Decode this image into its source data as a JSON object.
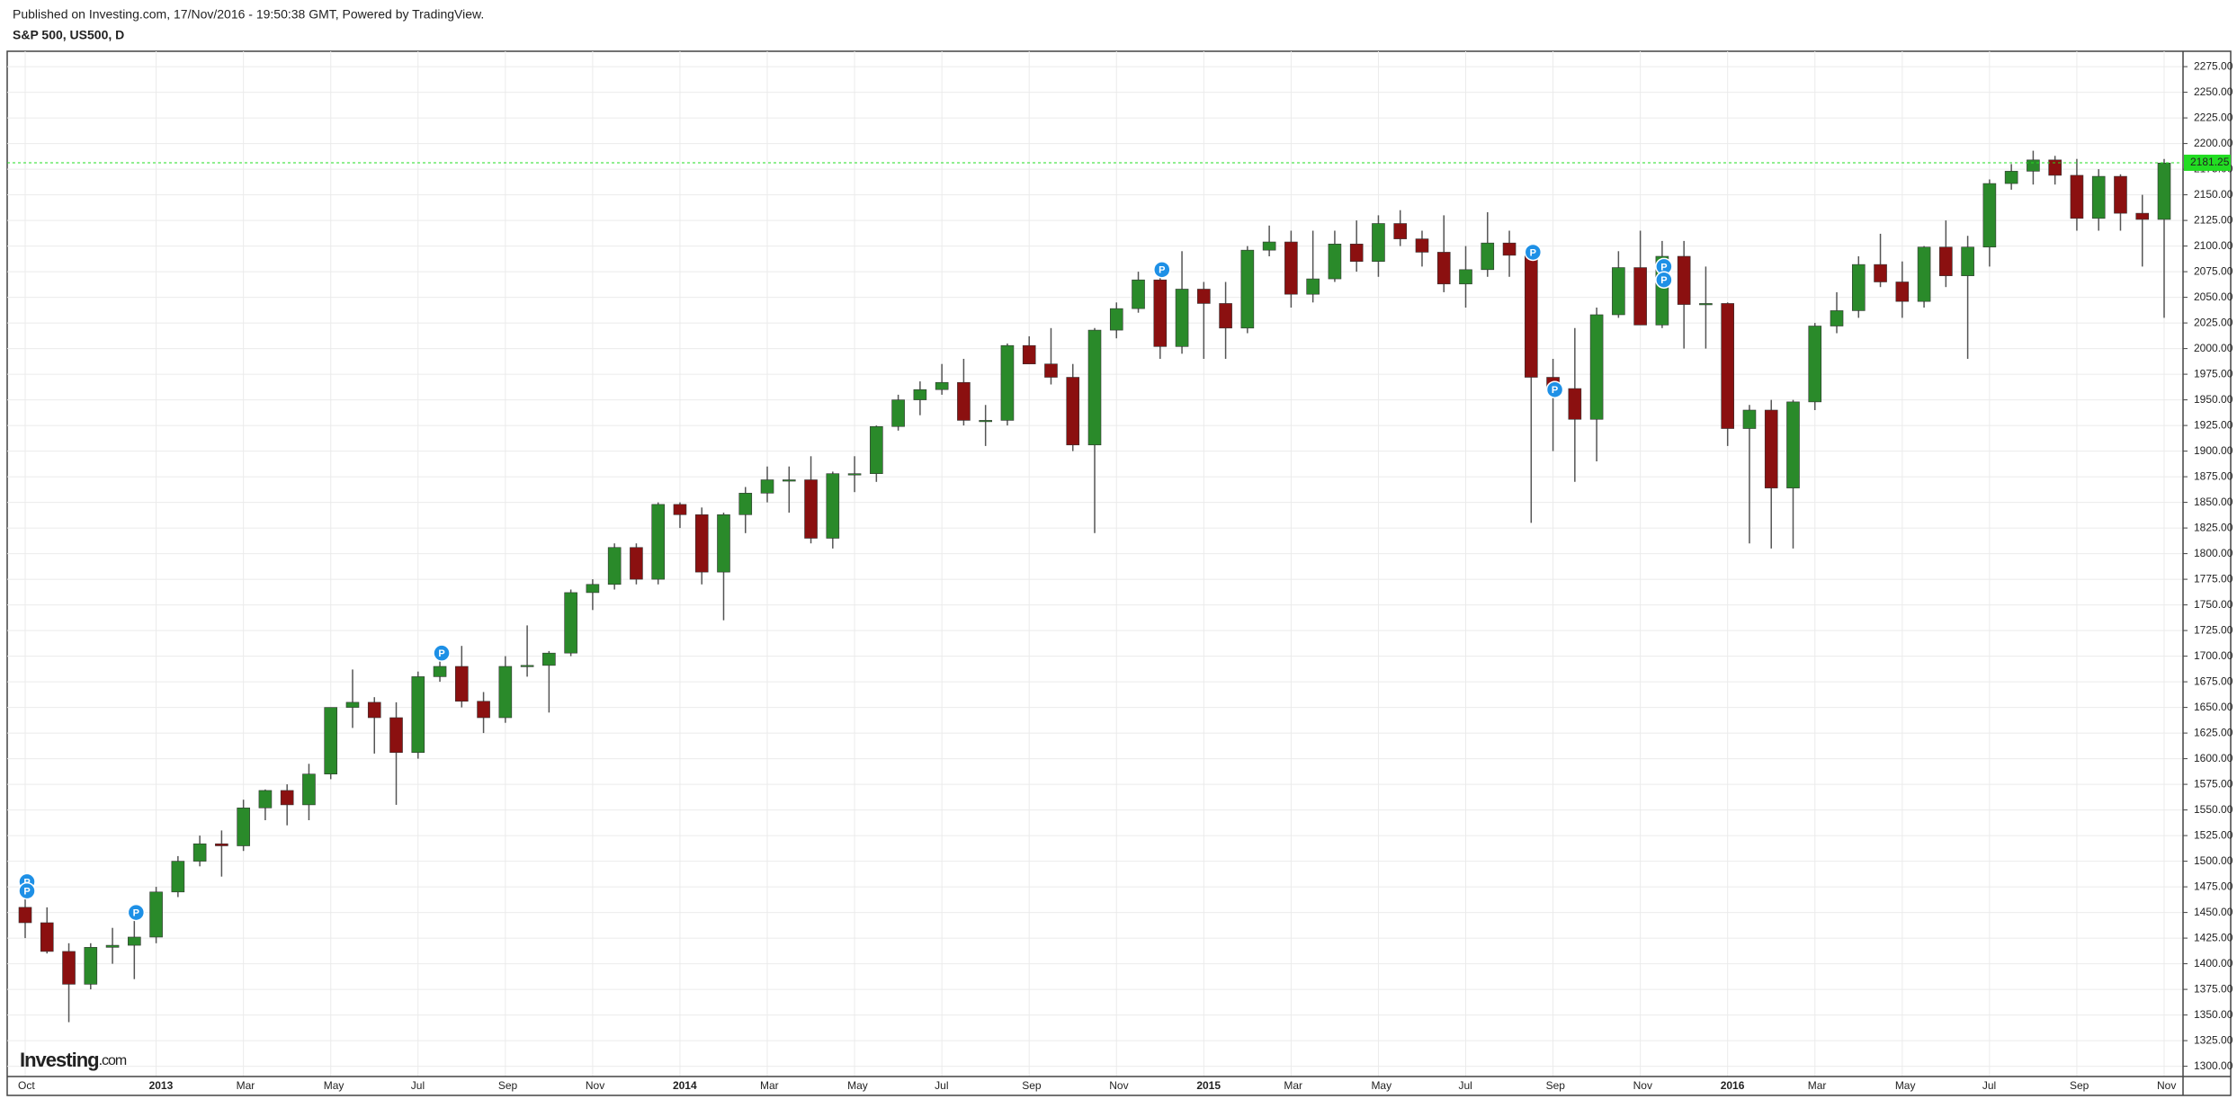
{
  "header": {
    "published": "Published on Investing.com, 17/Nov/2016 - 19:50:38 GMT, Powered by TradingView.",
    "symbol": "S&P 500, US500, D"
  },
  "logo": {
    "main": "Investing",
    "suffix": ".com"
  },
  "chart_data": {
    "type": "candlestick",
    "categories": [
      "Oct",
      null,
      null,
      null,
      null,
      null,
      "2013",
      null,
      null,
      null,
      "Mar",
      null,
      null,
      null,
      "May",
      null,
      null,
      null,
      "Jul",
      null,
      null,
      null,
      "Sep",
      null,
      null,
      null,
      "Nov",
      null,
      null,
      null,
      "2014",
      null,
      null,
      null,
      "Mar",
      null,
      null,
      null,
      "May",
      null,
      null,
      null,
      "Jul",
      null,
      null,
      null,
      "Sep",
      null,
      null,
      null,
      "Nov",
      null,
      null,
      null,
      "2015",
      null,
      null,
      null,
      "Mar",
      null,
      null,
      null,
      "May",
      null,
      null,
      null,
      "Jul",
      null,
      null,
      null,
      "Sep",
      null,
      null,
      null,
      "Nov",
      null,
      null,
      null,
      "2016",
      null,
      null,
      null,
      "Mar",
      null,
      null,
      null,
      "May",
      null,
      null,
      null,
      "Jul",
      null,
      null,
      null,
      "Sep",
      null,
      null,
      null,
      "Nov"
    ],
    "open": [
      1455,
      1440,
      1412,
      1380,
      1416,
      1418,
      1426,
      1470,
      1500,
      1517,
      1515,
      1552,
      1569,
      1555,
      1585,
      1650,
      1655,
      1640,
      1606,
      1680,
      1690,
      1656,
      1640,
      1690,
      1691,
      1703,
      1762,
      1770,
      1806,
      1775,
      1848,
      1838,
      1782,
      1838,
      1859,
      1872,
      1872,
      1815,
      1878,
      1878,
      1924,
      1950,
      1960,
      1967,
      1930,
      1930,
      2003,
      1985,
      1972,
      1906,
      2018,
      2039,
      2067,
      2002,
      2058,
      2044,
      2020,
      2096,
      2104,
      2053,
      2068,
      2102,
      2085,
      2122,
      2107,
      2094,
      2063,
      2077,
      2103,
      2091,
      1972,
      1961,
      1931,
      2033,
      2079,
      2023,
      2090,
      2043,
      2044,
      1922,
      1940,
      1864,
      1948,
      2022,
      2037,
      2082,
      2065,
      2046,
      2099,
      2071,
      2099,
      2161,
      2173,
      2184,
      2169,
      2127,
      2168,
      2132,
      2126
    ],
    "high": [
      1465,
      1455,
      1420,
      1420,
      1435,
      1450,
      1475,
      1505,
      1525,
      1530,
      1560,
      1570,
      1575,
      1595,
      1650,
      1687,
      1660,
      1655,
      1685,
      1700,
      1710,
      1665,
      1700,
      1730,
      1705,
      1765,
      1775,
      1810,
      1810,
      1850,
      1850,
      1845,
      1840,
      1865,
      1885,
      1885,
      1895,
      1880,
      1895,
      1925,
      1955,
      1968,
      1985,
      1990,
      1945,
      2005,
      2012,
      2020,
      1985,
      2020,
      2045,
      2075,
      2080,
      2095,
      2065,
      2065,
      2100,
      2120,
      2115,
      2115,
      2115,
      2125,
      2130,
      2135,
      2115,
      2130,
      2100,
      2133,
      2115,
      2095,
      1990,
      2020,
      2040,
      2095,
      2115,
      2105,
      2105,
      2080,
      2045,
      1945,
      1950,
      1950,
      2025,
      2055,
      2090,
      2112,
      2085,
      2100,
      2125,
      2110,
      2165,
      2180,
      2193,
      2188,
      2185,
      2175,
      2170,
      2150,
      2185
    ],
    "low": [
      1425,
      1410,
      1343,
      1375,
      1400,
      1385,
      1420,
      1465,
      1495,
      1485,
      1510,
      1540,
      1535,
      1540,
      1580,
      1630,
      1605,
      1555,
      1600,
      1675,
      1650,
      1625,
      1635,
      1680,
      1645,
      1700,
      1745,
      1765,
      1770,
      1770,
      1825,
      1770,
      1735,
      1820,
      1850,
      1840,
      1810,
      1805,
      1860,
      1870,
      1920,
      1935,
      1955,
      1925,
      1905,
      1925,
      1985,
      1965,
      1900,
      1820,
      2010,
      2035,
      1990,
      1995,
      1990,
      1990,
      2015,
      2090,
      2040,
      2045,
      2065,
      2075,
      2070,
      2100,
      2080,
      2055,
      2040,
      2070,
      2070,
      1830,
      1900,
      1870,
      1890,
      2030,
      2030,
      2020,
      2000,
      2000,
      1905,
      1810,
      1805,
      1805,
      1940,
      2015,
      2030,
      2060,
      2030,
      2040,
      2060,
      1990,
      2080,
      2155,
      2160,
      2160,
      2115,
      2115,
      2115,
      2080,
      2030
    ],
    "close": [
      1440,
      1412,
      1380,
      1416,
      1418,
      1426,
      1470,
      1500,
      1517,
      1515,
      1552,
      1569,
      1555,
      1585,
      1650,
      1655,
      1640,
      1606,
      1680,
      1690,
      1656,
      1640,
      1690,
      1691,
      1703,
      1762,
      1770,
      1806,
      1775,
      1848,
      1838,
      1782,
      1838,
      1859,
      1872,
      1872,
      1815,
      1878,
      1878,
      1924,
      1950,
      1960,
      1967,
      1930,
      1930,
      2003,
      1985,
      1972,
      1906,
      2018,
      2039,
      2067,
      2002,
      2058,
      2044,
      2020,
      2096,
      2104,
      2053,
      2068,
      2102,
      2085,
      2122,
      2107,
      2094,
      2063,
      2077,
      2103,
      2091,
      1972,
      1961,
      1931,
      2033,
      2079,
      2023,
      2090,
      2043,
      2044,
      1922,
      1940,
      1864,
      1948,
      2022,
      2037,
      2082,
      2065,
      2046,
      2099,
      2071,
      2099,
      2161,
      2173,
      2184,
      2169,
      2127,
      2168,
      2132,
      2126,
      2181
    ],
    "up_color": "#2a8a2a",
    "down_color": "#8b1010",
    "wick_color": "#555555",
    "ylim": [
      1290,
      2290
    ],
    "yticks": [
      {
        "value": 1300,
        "label": "1300.00"
      },
      {
        "value": 1325,
        "label": "1325.00"
      },
      {
        "value": 1350,
        "label": "1350.00"
      },
      {
        "value": 1375,
        "label": "1375.00"
      },
      {
        "value": 1400,
        "label": "1400.00"
      },
      {
        "value": 1425,
        "label": "1425.00"
      },
      {
        "value": 1450,
        "label": "1450.00"
      },
      {
        "value": 1475,
        "label": "1475.00"
      },
      {
        "value": 1500,
        "label": "1500.00"
      },
      {
        "value": 1525,
        "label": "1525.00"
      },
      {
        "value": 1550,
        "label": "1550.00"
      },
      {
        "value": 1575,
        "label": "1575.00"
      },
      {
        "value": 1600,
        "label": "1600.00"
      },
      {
        "value": 1625,
        "label": "1625.00"
      },
      {
        "value": 1650,
        "label": "1650.00"
      },
      {
        "value": 1675,
        "label": "1675.00"
      },
      {
        "value": 1700,
        "label": "1700.00"
      },
      {
        "value": 1725,
        "label": "1725.00"
      },
      {
        "value": 1750,
        "label": "1750.00"
      },
      {
        "value": 1775,
        "label": "1775.00"
      },
      {
        "value": 1800,
        "label": "1800.00"
      },
      {
        "value": 1825,
        "label": "1825.00"
      },
      {
        "value": 1850,
        "label": "1850.00"
      },
      {
        "value": 1875,
        "label": "1875.00"
      },
      {
        "value": 1900,
        "label": "1900.00"
      },
      {
        "value": 1925,
        "label": "1925.00"
      },
      {
        "value": 1950,
        "label": "1950.00"
      },
      {
        "value": 1975,
        "label": "1975.00"
      },
      {
        "value": 2000,
        "label": "2000.00"
      },
      {
        "value": 2025,
        "label": "2025.00"
      },
      {
        "value": 2050,
        "label": "2050.00"
      },
      {
        "value": 2075,
        "label": "2075.00"
      },
      {
        "value": 2100,
        "label": "2100.00"
      },
      {
        "value": 2125,
        "label": "2125.00"
      },
      {
        "value": 2150,
        "label": "2150.00"
      },
      {
        "value": 2175,
        "label": "2175.00"
      },
      {
        "value": 2200,
        "label": "2200.00"
      },
      {
        "value": 2225,
        "label": "2225.00"
      },
      {
        "value": 2250,
        "label": "2250.00"
      },
      {
        "value": 2275,
        "label": "2275.00"
      }
    ],
    "grid": true,
    "last_price": {
      "value": 2181.25,
      "label": "2181.25",
      "color": "#22dd22"
    },
    "markers": [
      {
        "candle": 0,
        "value": 1480,
        "label": "P"
      },
      {
        "candle": 0,
        "value": 1471,
        "label": "P"
      },
      {
        "candle": 5,
        "value": 1450,
        "label": "P"
      },
      {
        "candle": 19,
        "value": 1703,
        "label": "P"
      },
      {
        "candle": 52,
        "value": 2077,
        "label": "P"
      },
      {
        "candle": 69,
        "value": 2094,
        "label": "P"
      },
      {
        "candle": 70,
        "value": 1960,
        "label": "P"
      },
      {
        "candle": 75,
        "value": 2080,
        "label": "P"
      },
      {
        "candle": 75,
        "value": 2067,
        "label": "P"
      }
    ],
    "marker_color": "#1e90e6"
  }
}
